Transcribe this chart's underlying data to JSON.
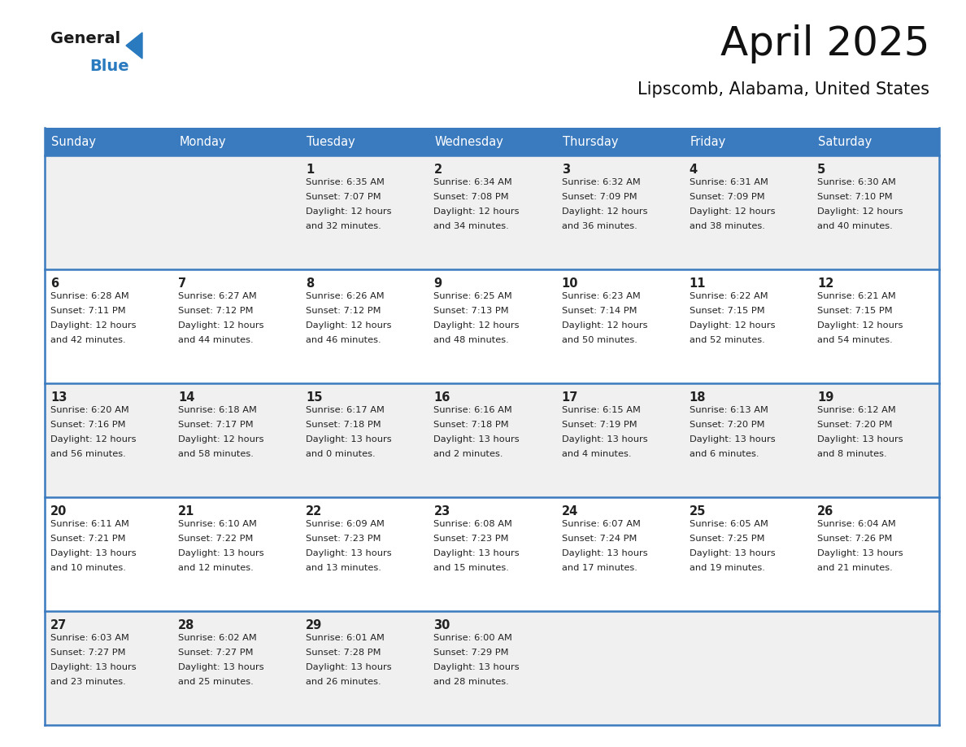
{
  "title": "April 2025",
  "subtitle": "Lipscomb, Alabama, United States",
  "header_color": "#3a7abf",
  "header_text_color": "#ffffff",
  "row_bg_even": "#f0f0f0",
  "row_bg_odd": "#ffffff",
  "border_color": "#3a7abf",
  "text_color": "#222222",
  "logo_black": "#1a1a1a",
  "logo_blue": "#2a7abf",
  "days_of_week": [
    "Sunday",
    "Monday",
    "Tuesday",
    "Wednesday",
    "Thursday",
    "Friday",
    "Saturday"
  ],
  "weeks": [
    [
      {
        "day": "",
        "sunrise": "",
        "sunset": "",
        "daylight": ""
      },
      {
        "day": "",
        "sunrise": "",
        "sunset": "",
        "daylight": ""
      },
      {
        "day": "1",
        "sunrise": "Sunrise: 6:35 AM",
        "sunset": "Sunset: 7:07 PM",
        "daylight": "Daylight: 12 hours\nand 32 minutes."
      },
      {
        "day": "2",
        "sunrise": "Sunrise: 6:34 AM",
        "sunset": "Sunset: 7:08 PM",
        "daylight": "Daylight: 12 hours\nand 34 minutes."
      },
      {
        "day": "3",
        "sunrise": "Sunrise: 6:32 AM",
        "sunset": "Sunset: 7:09 PM",
        "daylight": "Daylight: 12 hours\nand 36 minutes."
      },
      {
        "day": "4",
        "sunrise": "Sunrise: 6:31 AM",
        "sunset": "Sunset: 7:09 PM",
        "daylight": "Daylight: 12 hours\nand 38 minutes."
      },
      {
        "day": "5",
        "sunrise": "Sunrise: 6:30 AM",
        "sunset": "Sunset: 7:10 PM",
        "daylight": "Daylight: 12 hours\nand 40 minutes."
      }
    ],
    [
      {
        "day": "6",
        "sunrise": "Sunrise: 6:28 AM",
        "sunset": "Sunset: 7:11 PM",
        "daylight": "Daylight: 12 hours\nand 42 minutes."
      },
      {
        "day": "7",
        "sunrise": "Sunrise: 6:27 AM",
        "sunset": "Sunset: 7:12 PM",
        "daylight": "Daylight: 12 hours\nand 44 minutes."
      },
      {
        "day": "8",
        "sunrise": "Sunrise: 6:26 AM",
        "sunset": "Sunset: 7:12 PM",
        "daylight": "Daylight: 12 hours\nand 46 minutes."
      },
      {
        "day": "9",
        "sunrise": "Sunrise: 6:25 AM",
        "sunset": "Sunset: 7:13 PM",
        "daylight": "Daylight: 12 hours\nand 48 minutes."
      },
      {
        "day": "10",
        "sunrise": "Sunrise: 6:23 AM",
        "sunset": "Sunset: 7:14 PM",
        "daylight": "Daylight: 12 hours\nand 50 minutes."
      },
      {
        "day": "11",
        "sunrise": "Sunrise: 6:22 AM",
        "sunset": "Sunset: 7:15 PM",
        "daylight": "Daylight: 12 hours\nand 52 minutes."
      },
      {
        "day": "12",
        "sunrise": "Sunrise: 6:21 AM",
        "sunset": "Sunset: 7:15 PM",
        "daylight": "Daylight: 12 hours\nand 54 minutes."
      }
    ],
    [
      {
        "day": "13",
        "sunrise": "Sunrise: 6:20 AM",
        "sunset": "Sunset: 7:16 PM",
        "daylight": "Daylight: 12 hours\nand 56 minutes."
      },
      {
        "day": "14",
        "sunrise": "Sunrise: 6:18 AM",
        "sunset": "Sunset: 7:17 PM",
        "daylight": "Daylight: 12 hours\nand 58 minutes."
      },
      {
        "day": "15",
        "sunrise": "Sunrise: 6:17 AM",
        "sunset": "Sunset: 7:18 PM",
        "daylight": "Daylight: 13 hours\nand 0 minutes."
      },
      {
        "day": "16",
        "sunrise": "Sunrise: 6:16 AM",
        "sunset": "Sunset: 7:18 PM",
        "daylight": "Daylight: 13 hours\nand 2 minutes."
      },
      {
        "day": "17",
        "sunrise": "Sunrise: 6:15 AM",
        "sunset": "Sunset: 7:19 PM",
        "daylight": "Daylight: 13 hours\nand 4 minutes."
      },
      {
        "day": "18",
        "sunrise": "Sunrise: 6:13 AM",
        "sunset": "Sunset: 7:20 PM",
        "daylight": "Daylight: 13 hours\nand 6 minutes."
      },
      {
        "day": "19",
        "sunrise": "Sunrise: 6:12 AM",
        "sunset": "Sunset: 7:20 PM",
        "daylight": "Daylight: 13 hours\nand 8 minutes."
      }
    ],
    [
      {
        "day": "20",
        "sunrise": "Sunrise: 6:11 AM",
        "sunset": "Sunset: 7:21 PM",
        "daylight": "Daylight: 13 hours\nand 10 minutes."
      },
      {
        "day": "21",
        "sunrise": "Sunrise: 6:10 AM",
        "sunset": "Sunset: 7:22 PM",
        "daylight": "Daylight: 13 hours\nand 12 minutes."
      },
      {
        "day": "22",
        "sunrise": "Sunrise: 6:09 AM",
        "sunset": "Sunset: 7:23 PM",
        "daylight": "Daylight: 13 hours\nand 13 minutes."
      },
      {
        "day": "23",
        "sunrise": "Sunrise: 6:08 AM",
        "sunset": "Sunset: 7:23 PM",
        "daylight": "Daylight: 13 hours\nand 15 minutes."
      },
      {
        "day": "24",
        "sunrise": "Sunrise: 6:07 AM",
        "sunset": "Sunset: 7:24 PM",
        "daylight": "Daylight: 13 hours\nand 17 minutes."
      },
      {
        "day": "25",
        "sunrise": "Sunrise: 6:05 AM",
        "sunset": "Sunset: 7:25 PM",
        "daylight": "Daylight: 13 hours\nand 19 minutes."
      },
      {
        "day": "26",
        "sunrise": "Sunrise: 6:04 AM",
        "sunset": "Sunset: 7:26 PM",
        "daylight": "Daylight: 13 hours\nand 21 minutes."
      }
    ],
    [
      {
        "day": "27",
        "sunrise": "Sunrise: 6:03 AM",
        "sunset": "Sunset: 7:27 PM",
        "daylight": "Daylight: 13 hours\nand 23 minutes."
      },
      {
        "day": "28",
        "sunrise": "Sunrise: 6:02 AM",
        "sunset": "Sunset: 7:27 PM",
        "daylight": "Daylight: 13 hours\nand 25 minutes."
      },
      {
        "day": "29",
        "sunrise": "Sunrise: 6:01 AM",
        "sunset": "Sunset: 7:28 PM",
        "daylight": "Daylight: 13 hours\nand 26 minutes."
      },
      {
        "day": "30",
        "sunrise": "Sunrise: 6:00 AM",
        "sunset": "Sunset: 7:29 PM",
        "daylight": "Daylight: 13 hours\nand 28 minutes."
      },
      {
        "day": "",
        "sunrise": "",
        "sunset": "",
        "daylight": ""
      },
      {
        "day": "",
        "sunrise": "",
        "sunset": "",
        "daylight": ""
      },
      {
        "day": "",
        "sunrise": "",
        "sunset": "",
        "daylight": ""
      }
    ]
  ]
}
